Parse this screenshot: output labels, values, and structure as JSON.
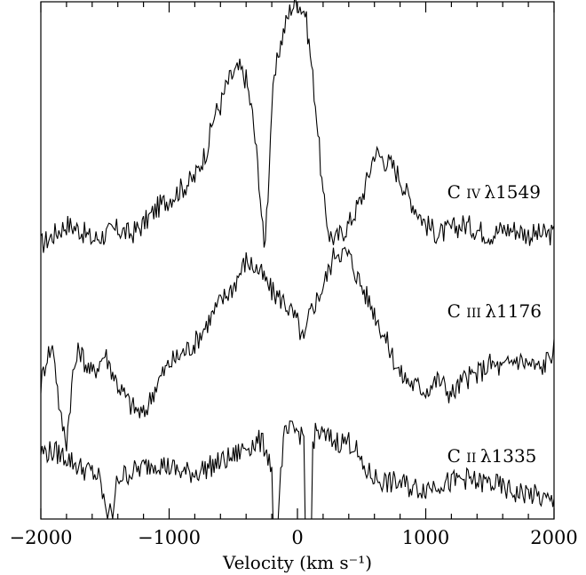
{
  "chart_data": {
    "type": "line",
    "xlabel": "Velocity (km s⁻¹)",
    "ylabel": "",
    "xlim": [
      -2000,
      2000
    ],
    "x_ticks": [
      -2000,
      -1000,
      0,
      1000,
      2000
    ],
    "x_tick_labels": [
      "−2000",
      "−1000",
      "0",
      "1000",
      "2000"
    ],
    "grid": false,
    "legend": "none",
    "y_units": "arbitrary (offset flux)",
    "ylim": [
      0,
      1
    ],
    "series": [
      {
        "name": "C IV λ1549",
        "label_element": "C",
        "label_ion": "IV",
        "label_wave": "λ1549",
        "label_x": 1250,
        "label_y": 0.62,
        "x": [
          -2000,
          -1900,
          -1800,
          -1700,
          -1600,
          -1500,
          -1400,
          -1300,
          -1200,
          -1100,
          -1000,
          -900,
          -800,
          -700,
          -650,
          -600,
          -550,
          -500,
          -450,
          -400,
          -350,
          -300,
          -260,
          -230,
          -200,
          -150,
          -100,
          -50,
          0,
          30,
          60,
          100,
          150,
          200,
          250,
          300,
          400,
          500,
          550,
          600,
          650,
          700,
          750,
          800,
          850,
          900,
          950,
          1000,
          1100,
          1200,
          1300,
          1400,
          1500,
          1600,
          1700,
          1800,
          1900,
          2000
        ],
        "y": [
          0.53,
          0.55,
          0.57,
          0.56,
          0.54,
          0.55,
          0.56,
          0.55,
          0.57,
          0.6,
          0.62,
          0.64,
          0.66,
          0.72,
          0.78,
          0.8,
          0.84,
          0.86,
          0.87,
          0.85,
          0.78,
          0.66,
          0.52,
          0.63,
          0.8,
          0.9,
          0.95,
          0.99,
          1.0,
          0.99,
          0.98,
          0.9,
          0.78,
          0.62,
          0.55,
          0.54,
          0.57,
          0.62,
          0.66,
          0.71,
          0.7,
          0.69,
          0.68,
          0.66,
          0.63,
          0.61,
          0.59,
          0.57,
          0.55,
          0.56,
          0.57,
          0.56,
          0.55,
          0.56,
          0.56,
          0.55,
          0.55,
          0.55
        ]
      },
      {
        "name": "C III λ1176",
        "label_element": "C",
        "label_ion": "III",
        "label_wave": "λ1176",
        "label_x": 1250,
        "label_y": 0.39,
        "x": [
          -2000,
          -1950,
          -1900,
          -1850,
          -1800,
          -1750,
          -1700,
          -1650,
          -1600,
          -1500,
          -1400,
          -1300,
          -1200,
          -1100,
          -1000,
          -900,
          -800,
          -700,
          -600,
          -500,
          -400,
          -300,
          -200,
          -100,
          0,
          50,
          100,
          200,
          300,
          400,
          500,
          600,
          700,
          800,
          900,
          1000,
          1100,
          1200,
          1300,
          1400,
          1500,
          1600,
          1700,
          1800,
          1900,
          2000
        ],
        "y": [
          0.26,
          0.32,
          0.33,
          0.2,
          0.15,
          0.28,
          0.33,
          0.3,
          0.28,
          0.32,
          0.26,
          0.22,
          0.2,
          0.26,
          0.3,
          0.32,
          0.34,
          0.38,
          0.42,
          0.45,
          0.5,
          0.48,
          0.44,
          0.42,
          0.38,
          0.34,
          0.4,
          0.45,
          0.52,
          0.51,
          0.45,
          0.4,
          0.34,
          0.28,
          0.26,
          0.25,
          0.27,
          0.24,
          0.27,
          0.28,
          0.3,
          0.29,
          0.31,
          0.3,
          0.29,
          0.33
        ]
      },
      {
        "name": "C II λ1335",
        "label_element": "C",
        "label_ion": "II",
        "label_wave": "λ1335",
        "label_x": 1250,
        "label_y": 0.11,
        "x": [
          -2000,
          -1900,
          -1800,
          -1700,
          -1600,
          -1550,
          -1500,
          -1480,
          -1460,
          -1440,
          -1420,
          -1400,
          -1300,
          -1200,
          -1100,
          -1000,
          -900,
          -800,
          -700,
          -600,
          -500,
          -400,
          -300,
          -250,
          -200,
          -190,
          -180,
          -160,
          -150,
          -140,
          -120,
          -100,
          -50,
          0,
          50,
          60,
          70,
          90,
          110,
          120,
          150,
          200,
          300,
          400,
          450,
          500,
          600,
          700,
          800,
          900,
          1000,
          1100,
          1200,
          1300,
          1400,
          1500,
          1600,
          1700,
          1800,
          1900,
          2000
        ],
        "y": [
          0.13,
          0.13,
          0.12,
          0.1,
          0.09,
          0.08,
          0.03,
          0.0,
          0.03,
          0.0,
          0.05,
          0.08,
          0.09,
          0.1,
          0.11,
          0.1,
          0.09,
          0.09,
          0.1,
          0.11,
          0.12,
          0.14,
          0.15,
          0.14,
          0.1,
          0.0,
          0.0,
          0.0,
          0.0,
          0.05,
          0.12,
          0.16,
          0.17,
          0.17,
          0.16,
          0.0,
          0.0,
          0.0,
          0.0,
          0.15,
          0.17,
          0.16,
          0.15,
          0.15,
          0.14,
          0.1,
          0.08,
          0.07,
          0.07,
          0.06,
          0.06,
          0.07,
          0.07,
          0.08,
          0.07,
          0.07,
          0.06,
          0.05,
          0.05,
          0.04,
          0.03
        ]
      }
    ]
  }
}
